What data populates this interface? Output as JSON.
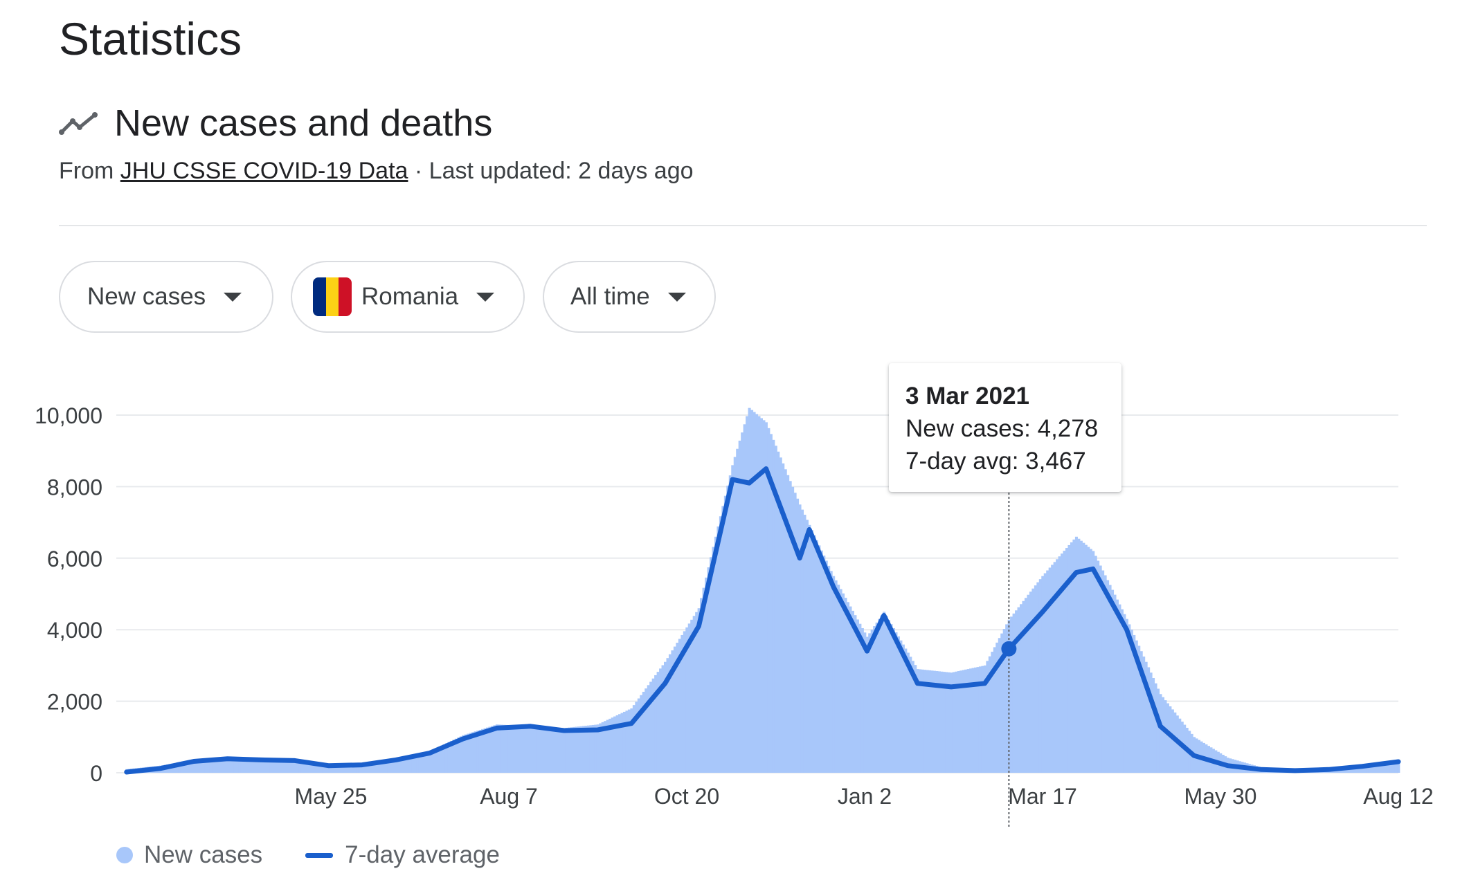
{
  "page": {
    "title": "Statistics",
    "section_title": "New cases and deaths",
    "source_prefix": "From",
    "source_link": "JHU CSSE COVID-19 Data",
    "updated": "· Last updated: 2 days ago"
  },
  "icons": {
    "section": "trending-line-icon",
    "dropdown": "caret-down-icon",
    "region_flag": "romania-flag-icon"
  },
  "filters": {
    "metric": "New cases",
    "region": "Romania",
    "range": "All time",
    "flag_colors": [
      "#002b7f",
      "#fcd116",
      "#ce1126"
    ]
  },
  "colors": {
    "bars": "#a8c7fa",
    "line": "#1a5fcc",
    "grid": "#e8eaed",
    "axis_text": "#3c4043"
  },
  "tooltip": {
    "date": "3 Mar 2021",
    "new_cases": "New cases: 4,278",
    "avg": "7-day avg: 3,467"
  },
  "chart_data": {
    "type": "bar",
    "title": "",
    "xlabel": "",
    "ylabel": "",
    "ylim": [
      0,
      10000
    ],
    "y_ticks": [
      0,
      2000,
      4000,
      6000,
      8000,
      10000
    ],
    "y_tick_labels": [
      "0",
      "2,000",
      "4,000",
      "6,000",
      "8,000",
      "10,000"
    ],
    "x_ticks": [
      "2020-05-25",
      "2020-08-07",
      "2020-10-20",
      "2021-01-02",
      "2021-03-17",
      "2021-05-30",
      "2021-08-12"
    ],
    "x_tick_labels": [
      "May 25",
      "Aug 7",
      "Oct 20",
      "Jan 2",
      "Mar 17",
      "May 30",
      "Aug 12"
    ],
    "grid": true,
    "legend_position": "bottom-left",
    "highlight": {
      "date": "2021-03-03",
      "new_cases": 4278,
      "avg": 3467
    },
    "series": [
      {
        "name": "New cases",
        "type": "bar",
        "points": [
          [
            "2020-03-01",
            100
          ],
          [
            "2020-03-15",
            200
          ],
          [
            "2020-03-29",
            350
          ],
          [
            "2020-04-12",
            400
          ],
          [
            "2020-04-26",
            350
          ],
          [
            "2020-05-10",
            300
          ],
          [
            "2020-05-24",
            180
          ],
          [
            "2020-06-07",
            250
          ],
          [
            "2020-06-21",
            380
          ],
          [
            "2020-07-05",
            600
          ],
          [
            "2020-07-19",
            1050
          ],
          [
            "2020-08-02",
            1350
          ],
          [
            "2020-08-16",
            1300
          ],
          [
            "2020-08-30",
            1250
          ],
          [
            "2020-09-13",
            1350
          ],
          [
            "2020-09-27",
            1800
          ],
          [
            "2020-10-11",
            3100
          ],
          [
            "2020-10-25",
            4600
          ],
          [
            "2020-11-08",
            8600
          ],
          [
            "2020-11-15",
            10200
          ],
          [
            "2020-11-22",
            9800
          ],
          [
            "2020-12-06",
            7500
          ],
          [
            "2020-12-20",
            5500
          ],
          [
            "2021-01-03",
            3800
          ],
          [
            "2021-01-10",
            4500
          ],
          [
            "2021-01-24",
            2900
          ],
          [
            "2021-02-07",
            2800
          ],
          [
            "2021-02-21",
            3000
          ],
          [
            "2021-03-03",
            4278
          ],
          [
            "2021-03-17",
            5500
          ],
          [
            "2021-03-31",
            6600
          ],
          [
            "2021-04-07",
            6200
          ],
          [
            "2021-04-21",
            4300
          ],
          [
            "2021-05-05",
            2200
          ],
          [
            "2021-05-19",
            1000
          ],
          [
            "2021-06-02",
            420
          ],
          [
            "2021-06-16",
            150
          ],
          [
            "2021-06-30",
            80
          ],
          [
            "2021-07-14",
            90
          ],
          [
            "2021-07-28",
            190
          ],
          [
            "2021-08-12",
            330
          ]
        ]
      },
      {
        "name": "7-day average",
        "type": "line",
        "points": [
          [
            "2020-03-01",
            20
          ],
          [
            "2020-03-15",
            120
          ],
          [
            "2020-03-29",
            320
          ],
          [
            "2020-04-12",
            390
          ],
          [
            "2020-04-26",
            360
          ],
          [
            "2020-05-10",
            340
          ],
          [
            "2020-05-24",
            200
          ],
          [
            "2020-06-07",
            220
          ],
          [
            "2020-06-21",
            360
          ],
          [
            "2020-07-05",
            550
          ],
          [
            "2020-07-19",
            950
          ],
          [
            "2020-08-02",
            1250
          ],
          [
            "2020-08-16",
            1300
          ],
          [
            "2020-08-30",
            1180
          ],
          [
            "2020-09-13",
            1200
          ],
          [
            "2020-09-27",
            1380
          ],
          [
            "2020-10-11",
            2500
          ],
          [
            "2020-10-25",
            4100
          ],
          [
            "2020-11-08",
            8200
          ],
          [
            "2020-11-15",
            8100
          ],
          [
            "2020-11-22",
            8500
          ],
          [
            "2020-12-06",
            6000
          ],
          [
            "2020-12-10",
            6800
          ],
          [
            "2020-12-20",
            5200
          ],
          [
            "2021-01-03",
            3400
          ],
          [
            "2021-01-10",
            4400
          ],
          [
            "2021-01-24",
            2500
          ],
          [
            "2021-02-07",
            2400
          ],
          [
            "2021-02-21",
            2500
          ],
          [
            "2021-03-03",
            3467
          ],
          [
            "2021-03-17",
            4500
          ],
          [
            "2021-03-31",
            5600
          ],
          [
            "2021-04-07",
            5700
          ],
          [
            "2021-04-21",
            4000
          ],
          [
            "2021-05-05",
            1300
          ],
          [
            "2021-05-19",
            480
          ],
          [
            "2021-06-02",
            200
          ],
          [
            "2021-06-16",
            90
          ],
          [
            "2021-06-30",
            60
          ],
          [
            "2021-07-14",
            90
          ],
          [
            "2021-07-28",
            180
          ],
          [
            "2021-08-12",
            310
          ]
        ]
      }
    ]
  },
  "legend": {
    "bars": "New cases",
    "line": "7-day average"
  }
}
